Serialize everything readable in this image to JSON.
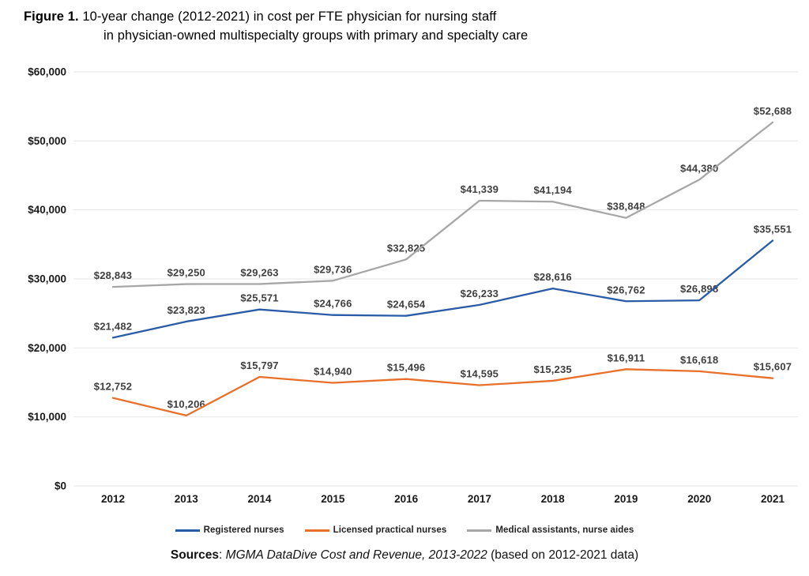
{
  "figure": {
    "label": "Figure 1.",
    "title_line1": "10-year change (2012-2021) in cost per FTE physician for nursing staff",
    "title_line2": "in physician-owned multispecialty groups with primary and specialty care"
  },
  "chart_data": {
    "type": "line",
    "x": [
      2012,
      2013,
      2014,
      2015,
      2016,
      2017,
      2018,
      2019,
      2020,
      2021
    ],
    "x_tick_labels": [
      "2012",
      "2013",
      "2014",
      "2015",
      "2016",
      "2017",
      "2018",
      "2019",
      "2020",
      "2021"
    ],
    "series": [
      {
        "name": "Registered nurses",
        "color": "#2a5ba6",
        "values": [
          21482,
          23823,
          25571,
          24766,
          24654,
          26233,
          28616,
          26762,
          26898,
          35551
        ],
        "value_labels": [
          "$21,482",
          "$23,823",
          "$25,571",
          "$24,766",
          "$24,654",
          "$26,233",
          "$28,616",
          "$26,762",
          "$26,898",
          "$35,551"
        ]
      },
      {
        "name": "Licensed practical nurses",
        "color": "#e8702a",
        "values": [
          12752,
          10206,
          15797,
          14940,
          15496,
          14595,
          15235,
          16911,
          16618,
          15607
        ],
        "value_labels": [
          "$12,752",
          "$10,206",
          "$15,797",
          "$14,940",
          "$15,496",
          "$14,595",
          "$15,235",
          "$16,911",
          "$16,618",
          "$15,607"
        ]
      },
      {
        "name": "Medical assistants, nurse aides",
        "color": "#a7a7a7",
        "values": [
          28843,
          29250,
          29263,
          29736,
          32825,
          41339,
          41194,
          38848,
          44380,
          52688
        ],
        "value_labels": [
          "$28,843",
          "$29,250",
          "$29,263",
          "$29,736",
          "$32,825",
          "$41,339",
          "$41,194",
          "$38,848",
          "$44,380",
          "$52,688"
        ]
      }
    ],
    "ylim": [
      0,
      60000
    ],
    "ytick_step": 10000,
    "ytick_labels_top_to_bottom": [
      "$60,000",
      "$50,000",
      "$40,000",
      "$30,000",
      "$20,000",
      "$10,000",
      "$0"
    ],
    "grid": true,
    "legend_position": "bottom",
    "value_labels_shown": true,
    "colors": {
      "gridline": "#e6e6e6",
      "axis_label": "#1a1a1a",
      "value_label": "#3f3f3f"
    }
  },
  "legend": {
    "items": [
      {
        "label": "Registered nurses",
        "color": "#2a5ba6"
      },
      {
        "label": "Licensed practical nurses",
        "color": "#e8702a"
      },
      {
        "label": "Medical assistants, nurse aides",
        "color": "#a7a7a7"
      }
    ]
  },
  "sources": {
    "prefix": "Sources",
    "separator": ": ",
    "citation": "MGMA DataDive Cost and Revenue, 2013-2022",
    "suffix": " (based on 2012-2021 data)"
  }
}
